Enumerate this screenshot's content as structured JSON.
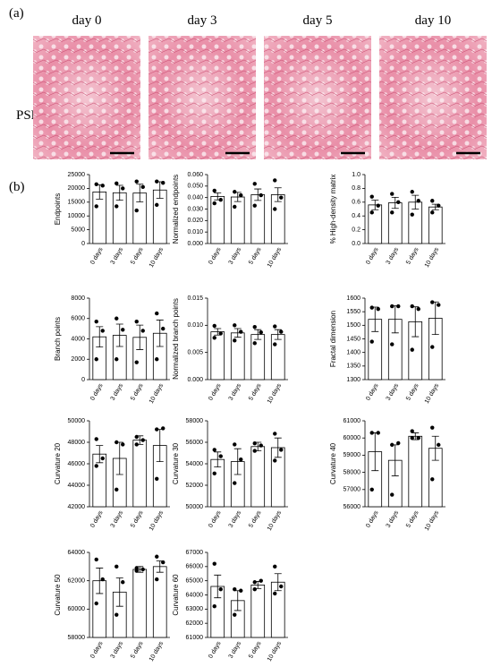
{
  "panels": {
    "a": "(a)",
    "b": "(b)"
  },
  "images": {
    "labels": [
      "day 0",
      "day 3",
      "day 5",
      "day 10"
    ],
    "row_label": "PSR"
  },
  "chart_data": [
    {
      "type": "bar",
      "y_label": "Endpoints",
      "categories": [
        "0 days",
        "3 days",
        "5 days",
        "10 days"
      ],
      "values": [
        18700,
        18400,
        18300,
        19400
      ],
      "errors": [
        2600,
        2700,
        3200,
        3000
      ],
      "points": [
        [
          21500,
          21000,
          13500
        ],
        [
          21800,
          20000,
          13500
        ],
        [
          22500,
          20500,
          12000
        ],
        [
          22500,
          22000,
          14000
        ]
      ],
      "ylim": [
        0,
        25000
      ],
      "yticks": [
        0,
        5000,
        10000,
        15000,
        20000,
        25000
      ]
    },
    {
      "type": "bar",
      "y_label": "Normalized endpoints",
      "categories": [
        "0 days",
        "3 days",
        "5 days",
        "10 days"
      ],
      "values": [
        0.041,
        0.0405,
        0.0425,
        0.0425
      ],
      "errors": [
        0.003,
        0.004,
        0.005,
        0.006
      ],
      "points": [
        [
          0.046,
          0.038,
          0.035
        ],
        [
          0.045,
          0.042,
          0.032
        ],
        [
          0.052,
          0.042,
          0.033
        ],
        [
          0.055,
          0.04,
          0.03
        ]
      ],
      "ylim": [
        0,
        0.06
      ],
      "yticks": [
        {
          "value": 0,
          "label": "0.000"
        },
        {
          "value": 0.01,
          "label": "0.010"
        },
        {
          "value": 0.02,
          "label": "0.020"
        },
        {
          "value": 0.03,
          "label": "0.030"
        },
        {
          "value": 0.04,
          "label": "0.040"
        },
        {
          "value": 0.05,
          "label": "0.050"
        },
        {
          "value": 0.06,
          "label": "0.060"
        }
      ]
    },
    {
      "type": "bar",
      "y_label": "% High-density matrix",
      "categories": [
        "0 days",
        "3 days",
        "5 days",
        "10 days"
      ],
      "values": [
        0.56,
        0.59,
        0.6,
        0.53
      ],
      "errors": [
        0.07,
        0.08,
        0.1,
        0.04
      ],
      "points": [
        [
          0.68,
          0.55,
          0.45
        ],
        [
          0.72,
          0.6,
          0.45
        ],
        [
          0.75,
          0.62,
          0.42
        ],
        [
          0.62,
          0.55,
          0.45
        ]
      ],
      "ylim": [
        0,
        1
      ],
      "yticks": [
        {
          "value": 0,
          "label": "0.0"
        },
        0.2,
        0.4,
        0.6,
        0.8,
        {
          "value": 1,
          "label": "1.0"
        }
      ]
    },
    {
      "type": "bar",
      "y_label": "Branch points",
      "categories": [
        "0 days",
        "3 days",
        "5 days",
        "10 days"
      ],
      "values": [
        4200,
        4350,
        4150,
        4550
      ],
      "errors": [
        1000,
        1100,
        1200,
        1300
      ],
      "points": [
        [
          5700,
          4800,
          2000
        ],
        [
          6000,
          4900,
          2000
        ],
        [
          5700,
          4800,
          1700
        ],
        [
          6500,
          5000,
          2000
        ]
      ],
      "ylim": [
        0,
        8000
      ],
      "yticks": [
        0,
        2000,
        4000,
        6000,
        8000
      ]
    },
    {
      "type": "bar",
      "y_label": "Normalized branch points",
      "categories": [
        "0 days",
        "3 days",
        "5 days",
        "10 days"
      ],
      "values": [
        0.0088,
        0.0086,
        0.0083,
        0.0083
      ],
      "errors": [
        0.0006,
        0.0008,
        0.0009,
        0.0009
      ],
      "points": [
        [
          0.0099,
          0.0085,
          0.0077
        ],
        [
          0.01,
          0.0088,
          0.0072
        ],
        [
          0.0097,
          0.0087,
          0.0067
        ],
        [
          0.0098,
          0.0088,
          0.0065
        ]
      ],
      "ylim": [
        0,
        0.015
      ],
      "yticks": [
        {
          "value": 0,
          "label": "0.000"
        },
        0.005,
        {
          "value": 0.01,
          "label": "0.010"
        },
        0.015
      ]
    },
    {
      "type": "bar",
      "y_label": "Fractal dimension",
      "categories": [
        "0 days",
        "3 days",
        "5 days",
        "10 days"
      ],
      "values": [
        1522,
        1522,
        1513,
        1526
      ],
      "errors": [
        45,
        50,
        55,
        60
      ],
      "points": [
        [
          1565,
          1560,
          1440
        ],
        [
          1570,
          1570,
          1430
        ],
        [
          1570,
          1560,
          1410
        ],
        [
          1585,
          1575,
          1420
        ]
      ],
      "ylim": [
        1300,
        1600
      ],
      "yticks": [
        1300,
        1350,
        1400,
        1450,
        1500,
        1550,
        1600
      ]
    },
    {
      "type": "bar",
      "y_label": "Curvature 20",
      "categories": [
        "0 days",
        "3 days",
        "5 days",
        "10 days"
      ],
      "values": [
        46900,
        46500,
        48200,
        47700
      ],
      "errors": [
        800,
        1500,
        400,
        1500
      ],
      "points": [
        [
          48300,
          46500,
          45800
        ],
        [
          48000,
          47800,
          43600
        ],
        [
          48500,
          48200,
          47800
        ],
        [
          49200,
          49300,
          44600
        ]
      ],
      "ylim": [
        42000,
        50000
      ],
      "yticks": [
        42000,
        44000,
        46000,
        48000,
        50000
      ]
    },
    {
      "type": "bar",
      "y_label": "Curvature 30",
      "categories": [
        "0 days",
        "3 days",
        "5 days",
        "10 days"
      ],
      "values": [
        54400,
        54200,
        55600,
        55500
      ],
      "errors": [
        700,
        1200,
        400,
        900
      ],
      "points": [
        [
          55300,
          54700,
          53100
        ],
        [
          55800,
          54400,
          52200
        ],
        [
          55900,
          55700,
          55200
        ],
        [
          56800,
          55300,
          54300
        ]
      ],
      "ylim": [
        50000,
        58000
      ],
      "yticks": [
        50000,
        52000,
        54000,
        56000,
        58000
      ]
    },
    {
      "type": "bar",
      "y_label": "Curvature 40",
      "categories": [
        "0 days",
        "3 days",
        "5 days",
        "10 days"
      ],
      "values": [
        59200,
        58700,
        60100,
        59400
      ],
      "errors": [
        1100,
        900,
        200,
        700
      ],
      "points": [
        [
          60300,
          60300,
          57000
        ],
        [
          59600,
          59700,
          56700
        ],
        [
          60400,
          60000,
          60000
        ],
        [
          60600,
          59600,
          57600
        ]
      ],
      "ylim": [
        56000,
        61000
      ],
      "yticks": [
        56000,
        57000,
        58000,
        59000,
        60000,
        61000
      ]
    },
    {
      "type": "bar",
      "y_label": "Curvature 50",
      "categories": [
        "0 days",
        "3 days",
        "5 days",
        "10 days"
      ],
      "values": [
        62000,
        61200,
        62800,
        63000
      ],
      "errors": [
        900,
        1000,
        200,
        400
      ],
      "points": [
        [
          63500,
          62100,
          60400
        ],
        [
          63000,
          61900,
          59600
        ],
        [
          62900,
          62800,
          62700
        ],
        [
          63700,
          63300,
          62100
        ]
      ],
      "ylim": [
        58000,
        64000
      ],
      "yticks": [
        58000,
        60000,
        62000,
        64000
      ]
    },
    {
      "type": "bar",
      "y_label": "Curvature 60",
      "categories": [
        "0 days",
        "3 days",
        "5 days",
        "10 days"
      ],
      "values": [
        64600,
        63600,
        64700,
        64900
      ],
      "errors": [
        800,
        700,
        250,
        600
      ],
      "points": [
        [
          66200,
          64400,
          63200
        ],
        [
          64400,
          64300,
          62600
        ],
        [
          64900,
          65000,
          64400
        ],
        [
          66000,
          64600,
          64100
        ]
      ],
      "ylim": [
        61000,
        67000
      ],
      "yticks": [
        61000,
        62000,
        63000,
        64000,
        65000,
        66000,
        67000
      ]
    }
  ]
}
